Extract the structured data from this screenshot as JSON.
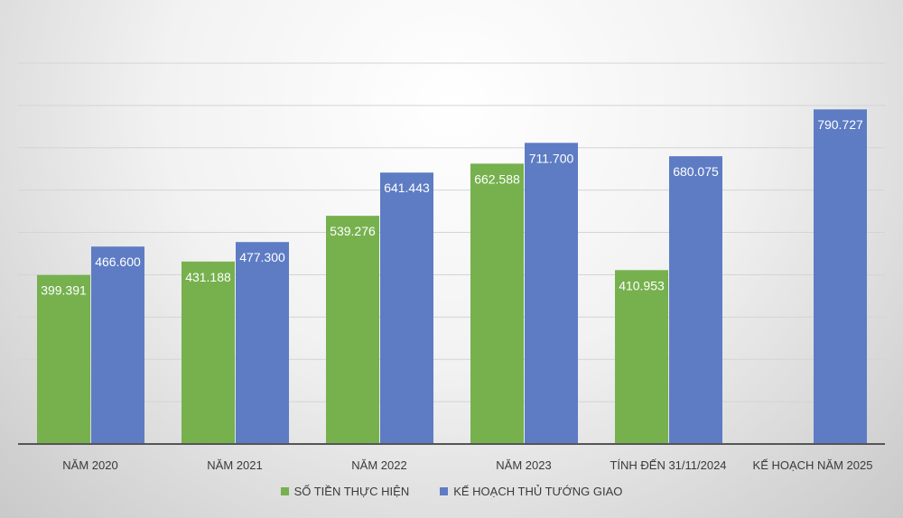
{
  "chart_data": {
    "type": "bar",
    "categories": [
      "NĂM 2020",
      "NĂM 2021",
      "NĂM 2022",
      "NĂM 2023",
      "TÍNH ĐẾN 31/11/2024",
      "KẾ HOẠCH NĂM 2025"
    ],
    "series": [
      {
        "name": "SỐ TIỀN THỰC HIỆN",
        "color": "#76b14e",
        "values": [
          399.391,
          431.188,
          539.276,
          662.588,
          410.953,
          null
        ],
        "labels": [
          "399.391",
          "431.188",
          "539.276",
          "662.588",
          "410.953",
          ""
        ]
      },
      {
        "name": "KẾ HOẠCH THỦ TƯỚNG GIAO",
        "color": "#5e7cc4",
        "values": [
          466.6,
          477.3,
          641.443,
          711.7,
          680.075,
          790.727
        ],
        "labels": [
          "466.600",
          "477.300",
          "641.443",
          "711.700",
          "680.075",
          "790.727"
        ]
      }
    ],
    "ylim": [
      0,
      900
    ],
    "grid": true,
    "legend_position": "bottom"
  }
}
